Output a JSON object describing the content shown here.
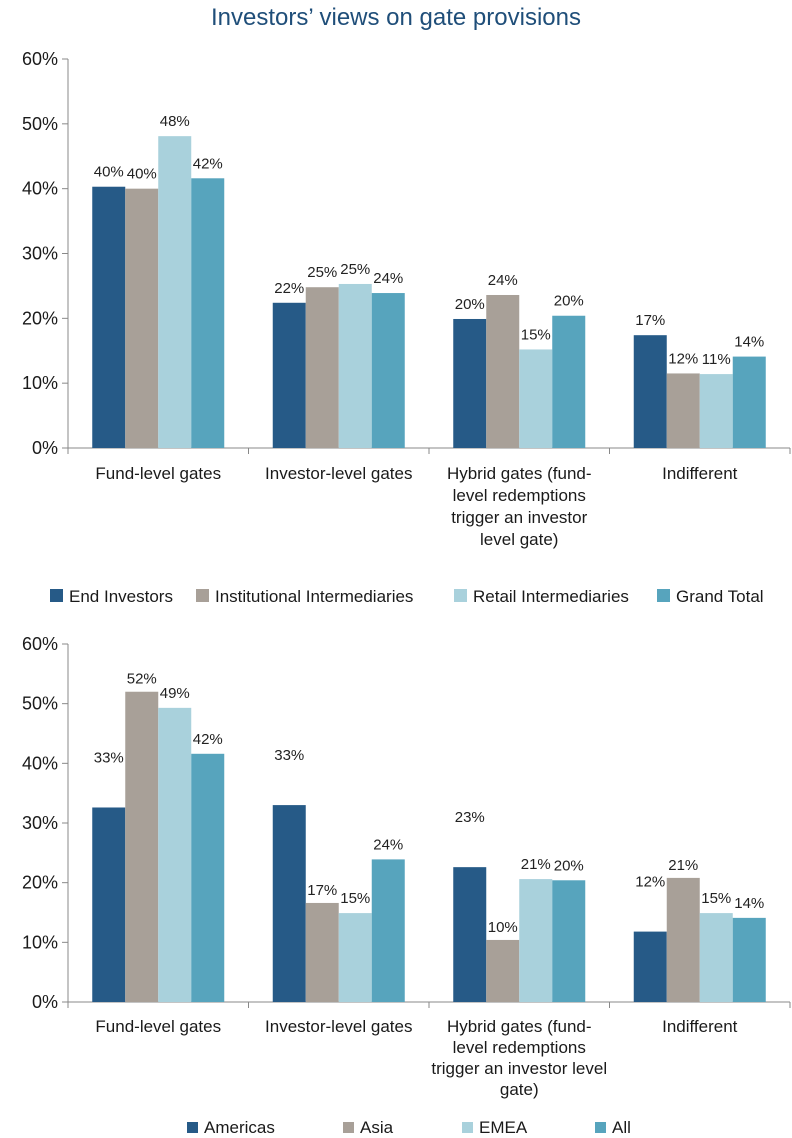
{
  "page_title": "Investors’ views on gate provisions",
  "chart_data": [
    {
      "type": "bar",
      "categories": [
        [
          "Fund-level gates"
        ],
        [
          "Investor-level gates"
        ],
        [
          "Hybrid gates (fund-",
          "level redemptions",
          "trigger an investor",
          "level gate)"
        ],
        [
          "Indifferent"
        ]
      ],
      "ylim": [
        0,
        60
      ],
      "yticks": [
        "0%",
        "10%",
        "20%",
        "30%",
        "40%",
        "50%",
        "60%"
      ],
      "legend_position": "bottom",
      "series": [
        {
          "name": "End Investors",
          "color": "#265a87",
          "values": [
            40.3,
            22.4,
            19.9,
            17.4
          ],
          "labels": [
            "40%",
            "22%",
            "20%",
            "17%"
          ]
        },
        {
          "name": "Institutional Intermediaries",
          "color": "#a8a098",
          "values": [
            40.0,
            24.8,
            23.6,
            11.5
          ],
          "labels": [
            "40%",
            "25%",
            "24%",
            "12%"
          ]
        },
        {
          "name": "Retail Intermediaries",
          "color": "#a9d1dc",
          "values": [
            48.1,
            25.3,
            15.2,
            11.4
          ],
          "labels": [
            "48%",
            "25%",
            "15%",
            "11%"
          ]
        },
        {
          "name": "Grand Total",
          "color": "#57a4bd",
          "values": [
            41.6,
            23.9,
            20.4,
            14.1
          ],
          "labels": [
            "42%",
            "24%",
            "20%",
            "14%"
          ]
        }
      ]
    },
    {
      "type": "bar",
      "categories": [
        [
          "Fund-level gates"
        ],
        [
          "Investor-level gates"
        ],
        [
          "Hybrid gates (fund-",
          "level redemptions",
          "trigger an investor level",
          "gate)"
        ],
        [
          "Indifferent"
        ]
      ],
      "ylim": [
        0,
        60
      ],
      "yticks": [
        "0%",
        "10%",
        "20%",
        "30%",
        "40%",
        "50%",
        "60%"
      ],
      "legend_position": "bottom",
      "series": [
        {
          "name": "Americas",
          "color": "#265a87",
          "values": [
            32.6,
            33.0,
            22.6,
            11.8
          ],
          "labels": [
            "33%",
            "33%",
            "23%",
            "12%"
          ]
        },
        {
          "name": "Asia",
          "color": "#a8a098",
          "values": [
            52.0,
            16.6,
            10.4,
            20.8
          ],
          "labels": [
            "52%",
            "17%",
            "10%",
            "21%"
          ]
        },
        {
          "name": "EMEA",
          "color": "#a9d1dc",
          "values": [
            49.3,
            14.9,
            20.6,
            14.9
          ],
          "labels": [
            "49%",
            "15%",
            "21%",
            "15%"
          ]
        },
        {
          "name": "All",
          "color": "#57a4bd",
          "values": [
            41.6,
            23.9,
            20.4,
            14.1
          ],
          "labels": [
            "42%",
            "24%",
            "20%",
            "14%"
          ]
        }
      ]
    }
  ]
}
